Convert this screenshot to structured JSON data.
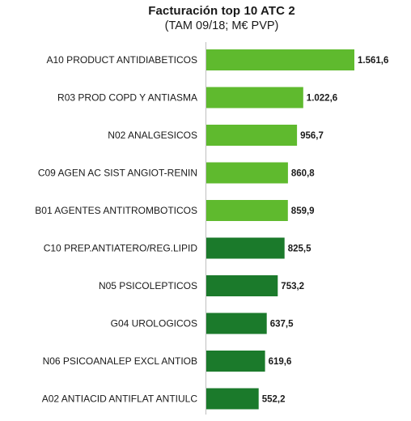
{
  "chart_data": {
    "type": "bar",
    "orientation": "horizontal",
    "title": "Facturación top 10 ATC 2",
    "subtitle": "(TAM 09/18; M€ PVP)",
    "categories": [
      "A10 PRODUCT ANTIDIABETICOS",
      "R03 PROD COPD Y ANTIASMA",
      "N02 ANALGESICOS",
      "C09 AGEN AC SIST ANGIOT-RENIN",
      "B01 AGENTES ANTITROMBOTICOS",
      "C10 PREP.ANTIATERO/REG.LIPID",
      "N05 PSICOLEPTICOS",
      "G04 UROLOGICOS",
      "N06 PSICOANALEP EXCL ANTIOB",
      "A02 ANTIACID ANTIFLAT ANTIULC"
    ],
    "values": [
      1561.6,
      1022.6,
      956.7,
      860.8,
      859.9,
      825.5,
      753.2,
      637.5,
      619.6,
      552.2
    ],
    "value_labels": [
      "1.561,6",
      "1.022,6",
      "956,7",
      "860,8",
      "859,9",
      "825,5",
      "753,2",
      "637,5",
      "619,6",
      "552,2"
    ],
    "colors": [
      "#5fba2e",
      "#5fba2e",
      "#5fba2e",
      "#5fba2e",
      "#5fba2e",
      "#1b7a2b",
      "#1b7a2b",
      "#1b7a2b",
      "#1b7a2b",
      "#1b7a2b"
    ],
    "xlim": [
      0,
      1561.6
    ],
    "grid": false,
    "legend": "none"
  }
}
